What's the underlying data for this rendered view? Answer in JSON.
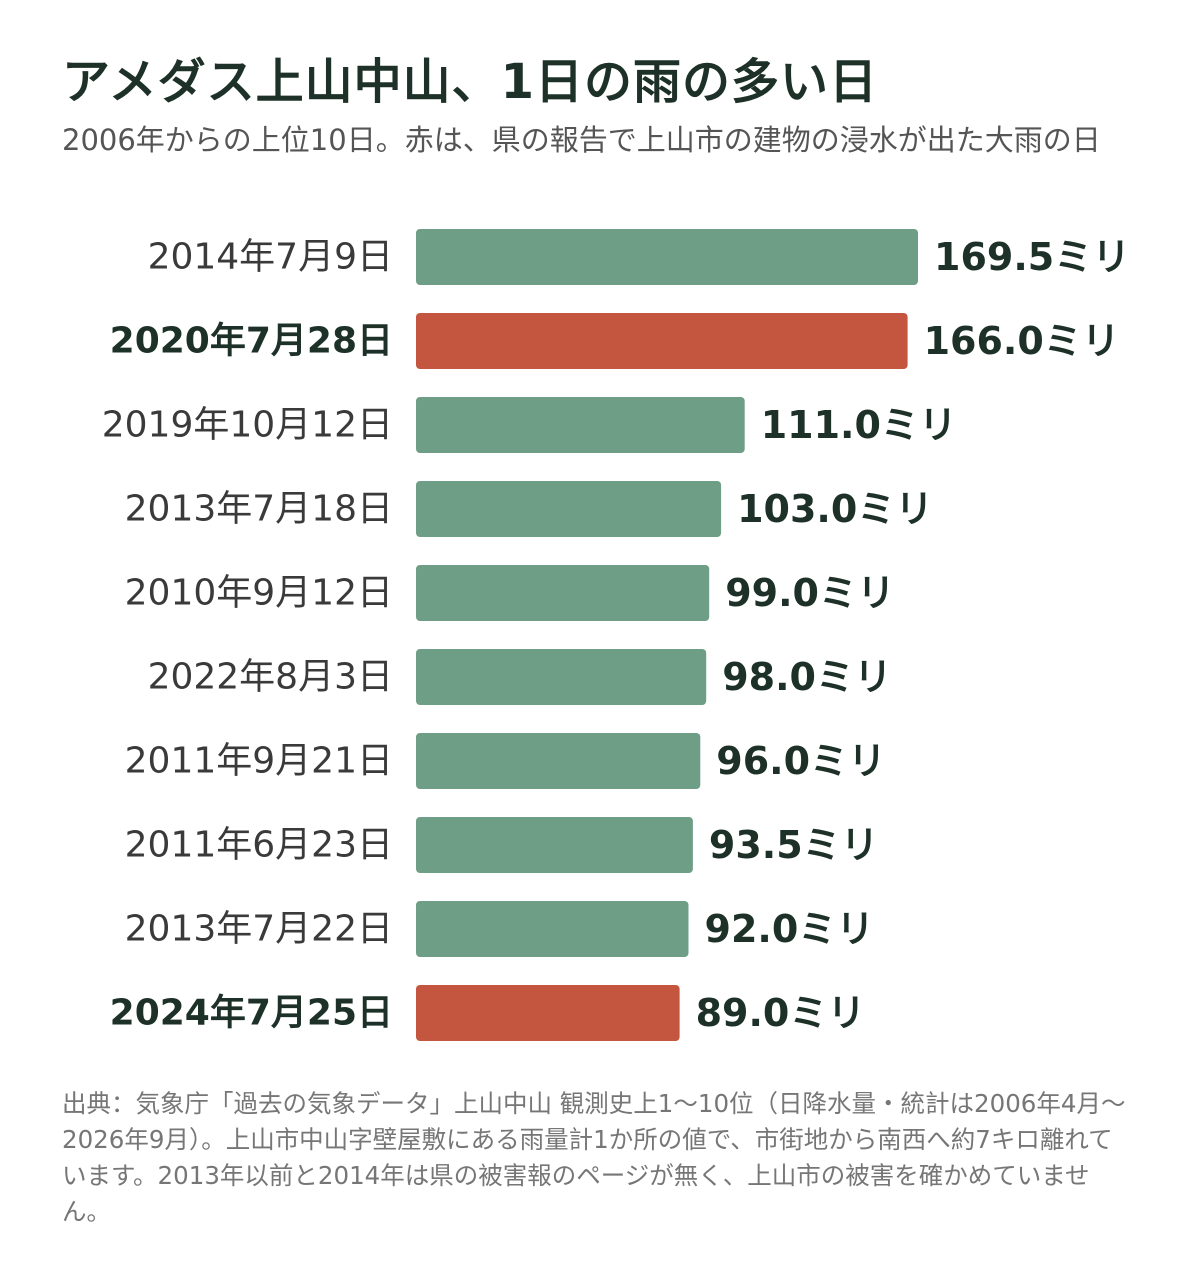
{
  "title": "アメダス上山中山、1日の雨の多い日",
  "subtitle": "2006年からの上位10日。赤は、県の報告で上山市の建物の浸水が出た大雨の日",
  "unit": "ミリ",
  "colors": {
    "normal": "#6f9e86",
    "flood": "#c4553e",
    "label": "#3a3a3a",
    "label_bold": "#1e3128",
    "value": "#1e3128"
  },
  "chart_data": {
    "type": "bar",
    "orientation": "horizontal",
    "categories": [
      "2014年7月9日",
      "2020年7月28日",
      "2019年10月12日",
      "2013年7月18日",
      "2010年9月12日",
      "2022年8月3日",
      "2011年9月21日",
      "2011年6月23日",
      "2013年7月22日",
      "2024年7月25日"
    ],
    "values": [
      169.5,
      166.0,
      111.0,
      103.0,
      99.0,
      98.0,
      96.0,
      93.5,
      92.0,
      89.0
    ],
    "value_labels": [
      "169.5",
      "166.0",
      "111.0",
      "103.0",
      "99.0",
      "98.0",
      "96.0",
      "93.5",
      "92.0",
      "89.0"
    ],
    "highlight": [
      false,
      true,
      false,
      false,
      false,
      false,
      false,
      false,
      false,
      true
    ],
    "xlim": [
      0,
      169.5
    ],
    "grid": false,
    "legend": "none"
  },
  "footnote": "出典：気象庁「過去の気象データ」上山中山 観測史上1～10位（日降水量・統計は2006年4月～2026年9月）。上山市中山字壁屋敷にある雨量計1か所の値で、市街地から南西へ約7キロ離れています。2013年以前と2014年は県の被害報のページが無く、上山市の被害を確かめていません。"
}
